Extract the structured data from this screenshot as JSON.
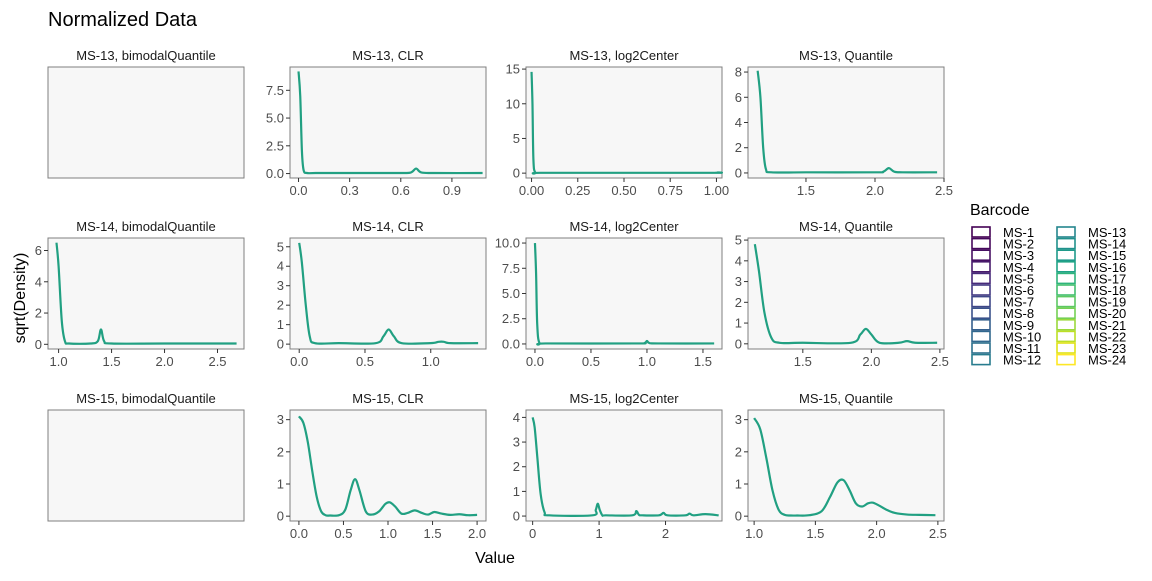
{
  "figure": {
    "title": "Normalized Data",
    "xlabel": "Value",
    "ylabel": "sqrt(Density)",
    "legend_title": "Barcode",
    "legend_placement": "right"
  },
  "legend": {
    "items": [
      {
        "label": "MS-1",
        "color": "#440154"
      },
      {
        "label": "MS-2",
        "color": "#46085C"
      },
      {
        "label": "MS-3",
        "color": "#471063"
      },
      {
        "label": "MS-4",
        "color": "#481A6C"
      },
      {
        "label": "MS-5",
        "color": "#472A7A"
      },
      {
        "label": "MS-6",
        "color": "#443A83"
      },
      {
        "label": "MS-7",
        "color": "#3F4788"
      },
      {
        "label": "MS-8",
        "color": "#3B528B"
      },
      {
        "label": "MS-9",
        "color": "#355F8D"
      },
      {
        "label": "MS-10",
        "color": "#31688E"
      },
      {
        "label": "MS-11",
        "color": "#2D718E"
      },
      {
        "label": "MS-12",
        "color": "#287C8E"
      },
      {
        "label": "MS-13",
        "color": "#24868E"
      },
      {
        "label": "MS-14",
        "color": "#21918C"
      },
      {
        "label": "MS-15",
        "color": "#1F9A8A"
      },
      {
        "label": "MS-16",
        "color": "#20A386"
      },
      {
        "label": "MS-17",
        "color": "#2FB47C"
      },
      {
        "label": "MS-18",
        "color": "#44BF70"
      },
      {
        "label": "MS-19",
        "color": "#5DC863"
      },
      {
        "label": "MS-20",
        "color": "#75D054"
      },
      {
        "label": "MS-21",
        "color": "#9BD93C"
      },
      {
        "label": "MS-22",
        "color": "#BDDF26"
      },
      {
        "label": "MS-23",
        "color": "#DFE318"
      },
      {
        "label": "MS-24",
        "color": "#FDE725"
      }
    ]
  },
  "chart_data": [
    {
      "type": "line",
      "title": "MS-13, bimodalQuantile",
      "empty": true,
      "series": []
    },
    {
      "type": "line",
      "title": "MS-13, CLR",
      "xlim": [
        -0.05,
        1.1
      ],
      "ylim": [
        -0.4,
        9.6
      ],
      "xticks": [
        0.0,
        0.3,
        0.6,
        0.9
      ],
      "xtick_labels": [
        "0.0",
        "0.3",
        "0.6",
        "0.9"
      ],
      "yticks": [
        0.0,
        2.5,
        5.0,
        7.5
      ],
      "ytick_labels": [
        "0.0",
        "2.5",
        "5.0",
        "7.5"
      ],
      "series": [
        {
          "barcode": "MS-13",
          "color": "#24868E",
          "x": [
            0,
            0.01,
            0.02,
            0.03,
            0.05,
            0.1,
            0.3,
            0.6,
            0.66,
            0.69,
            0.72,
            0.8,
            1.08
          ],
          "y": [
            9.2,
            7.0,
            2.0,
            0.3,
            0.05,
            0.05,
            0.05,
            0.05,
            0.1,
            0.45,
            0.1,
            0.05,
            0.05
          ]
        }
      ]
    },
    {
      "type": "line",
      "title": "MS-13, log2Center",
      "xlim": [
        -0.03,
        1.03
      ],
      "ylim": [
        -0.7,
        15.3
      ],
      "xticks": [
        0.0,
        0.25,
        0.5,
        0.75,
        1.0
      ],
      "xtick_labels": [
        "0.00",
        "0.25",
        "0.50",
        "0.75",
        "1.00"
      ],
      "yticks": [
        0,
        5,
        10,
        15
      ],
      "ytick_labels": [
        "0",
        "5",
        "10",
        "15"
      ],
      "series": [
        {
          "barcode": "MS-13",
          "color": "#24868E",
          "x": [
            0,
            0.005,
            0.01,
            0.02,
            0.05,
            0.5,
            0.99,
            1.0
          ],
          "y": [
            14.6,
            10.0,
            2.0,
            0.1,
            0.05,
            0.05,
            0.05,
            0.1
          ]
        }
      ]
    },
    {
      "type": "line",
      "title": "MS-13, Quantile",
      "xlim": [
        1.08,
        2.5
      ],
      "ylim": [
        -0.4,
        8.4
      ],
      "xticks": [
        1.5,
        2.0,
        2.5
      ],
      "xtick_labels": [
        "1.5",
        "2.0",
        "2.5"
      ],
      "yticks": [
        0,
        2,
        4,
        6,
        8
      ],
      "ytick_labels": [
        "0",
        "2",
        "4",
        "6",
        "8"
      ],
      "series": [
        {
          "barcode": "MS-13",
          "color": "#24868E",
          "x": [
            1.15,
            1.17,
            1.19,
            1.21,
            1.25,
            1.5,
            2.0,
            2.06,
            2.1,
            2.14,
            2.2,
            2.45
          ],
          "y": [
            8.1,
            6.0,
            2.0,
            0.3,
            0.05,
            0.05,
            0.05,
            0.1,
            0.38,
            0.1,
            0.05,
            0.05
          ]
        }
      ]
    },
    {
      "type": "line",
      "title": "MS-14, bimodalQuantile",
      "xlim": [
        0.9,
        2.75
      ],
      "ylim": [
        -0.3,
        6.8
      ],
      "xticks": [
        1.0,
        1.5,
        2.0,
        2.5
      ],
      "xtick_labels": [
        "1.0",
        "1.5",
        "2.0",
        "2.5"
      ],
      "yticks": [
        0,
        2,
        4,
        6
      ],
      "ytick_labels": [
        "0",
        "2",
        "4",
        "6"
      ],
      "series": [
        {
          "barcode": "MS-14",
          "color": "#21918C",
          "x": [
            0.98,
            1.0,
            1.03,
            1.06,
            1.1,
            1.3,
            1.37,
            1.4,
            1.43,
            1.5,
            2.0,
            2.68
          ],
          "y": [
            6.5,
            5.0,
            1.5,
            0.2,
            0.05,
            0.05,
            0.2,
            0.95,
            0.2,
            0.05,
            0.05,
            0.05
          ]
        }
      ]
    },
    {
      "type": "line",
      "title": "MS-14, CLR",
      "xlim": [
        -0.07,
        1.42
      ],
      "ylim": [
        -0.25,
        5.45
      ],
      "xticks": [
        0.0,
        0.5,
        1.0
      ],
      "xtick_labels": [
        "0.0",
        "0.5",
        "1.0"
      ],
      "yticks": [
        0,
        1,
        2,
        3,
        4,
        5
      ],
      "ytick_labels": [
        "0",
        "1",
        "2",
        "3",
        "4",
        "5"
      ],
      "series": [
        {
          "barcode": "MS-14",
          "color": "#21918C",
          "x": [
            0,
            0.02,
            0.05,
            0.08,
            0.12,
            0.3,
            0.58,
            0.64,
            0.68,
            0.72,
            0.78,
            1.0,
            1.06,
            1.1,
            1.15,
            1.36
          ],
          "y": [
            5.2,
            4.2,
            2.0,
            0.4,
            0.05,
            0.05,
            0.05,
            0.4,
            0.75,
            0.4,
            0.05,
            0.05,
            0.12,
            0.12,
            0.05,
            0.05
          ]
        }
      ]
    },
    {
      "type": "line",
      "title": "MS-14, log2Center",
      "xlim": [
        -0.08,
        1.67
      ],
      "ylim": [
        -0.5,
        10.5
      ],
      "xticks": [
        0.0,
        0.5,
        1.0,
        1.5
      ],
      "xtick_labels": [
        "0.0",
        "0.5",
        "1.0",
        "1.5"
      ],
      "yticks": [
        0.0,
        2.5,
        5.0,
        7.5,
        10.0
      ],
      "ytick_labels": [
        "0.0",
        "2.5",
        "5.0",
        "7.5",
        "10.0"
      ],
      "series": [
        {
          "barcode": "MS-14",
          "color": "#21918C",
          "x": [
            0,
            0.01,
            0.02,
            0.04,
            0.1,
            0.9,
            0.98,
            1.0,
            1.02,
            1.1,
            1.6
          ],
          "y": [
            10.0,
            7.0,
            2.0,
            0.1,
            0.05,
            0.05,
            0.1,
            0.3,
            0.1,
            0.05,
            0.05
          ]
        }
      ]
    },
    {
      "type": "line",
      "title": "MS-14, Quantile",
      "xlim": [
        1.1,
        2.53
      ],
      "ylim": [
        -0.25,
        5.1
      ],
      "xticks": [
        1.5,
        2.0,
        2.5
      ],
      "xtick_labels": [
        "1.5",
        "2.0",
        "2.5"
      ],
      "yticks": [
        0,
        1,
        2,
        3,
        4,
        5
      ],
      "ytick_labels": [
        "0",
        "1",
        "2",
        "3",
        "4",
        "5"
      ],
      "series": [
        {
          "barcode": "MS-14",
          "color": "#21918C",
          "x": [
            1.15,
            1.18,
            1.22,
            1.27,
            1.33,
            1.5,
            1.85,
            1.92,
            1.96,
            2.0,
            2.06,
            2.2,
            2.26,
            2.32,
            2.48
          ],
          "y": [
            4.8,
            3.5,
            1.5,
            0.3,
            0.05,
            0.05,
            0.05,
            0.45,
            0.72,
            0.45,
            0.05,
            0.05,
            0.13,
            0.05,
            0.05
          ]
        }
      ]
    },
    {
      "type": "line",
      "title": "MS-15, bimodalQuantile",
      "empty": true,
      "series": []
    },
    {
      "type": "line",
      "title": "MS-15, CLR",
      "xlim": [
        -0.1,
        2.1
      ],
      "ylim": [
        -0.15,
        3.3
      ],
      "xticks": [
        0.0,
        0.5,
        1.0,
        1.5,
        2.0
      ],
      "xtick_labels": [
        "0.0",
        "0.5",
        "1.0",
        "1.5",
        "2.0"
      ],
      "yticks": [
        0,
        1,
        2,
        3
      ],
      "ytick_labels": [
        "0",
        "1",
        "2",
        "3"
      ],
      "series": [
        {
          "barcode": "MS-15",
          "color": "#1F9A8A",
          "x": [
            0,
            0.05,
            0.1,
            0.15,
            0.2,
            0.25,
            0.3,
            0.35,
            0.45,
            0.52,
            0.58,
            0.63,
            0.68,
            0.75,
            0.82,
            0.9,
            0.97,
            1.02,
            1.08,
            1.15,
            1.22,
            1.3,
            1.38,
            1.45,
            1.52,
            1.6,
            1.7,
            1.8,
            1.9,
            2.0
          ],
          "y": [
            3.1,
            2.9,
            2.3,
            1.4,
            0.6,
            0.15,
            0.03,
            0.02,
            0.03,
            0.2,
            0.8,
            1.15,
            0.8,
            0.15,
            0.05,
            0.15,
            0.38,
            0.43,
            0.3,
            0.08,
            0.1,
            0.18,
            0.1,
            0.05,
            0.13,
            0.08,
            0.04,
            0.06,
            0.03,
            0.04
          ]
        }
      ]
    },
    {
      "type": "line",
      "title": "MS-15, log2Center",
      "xlim": [
        -0.1,
        2.85
      ],
      "ylim": [
        -0.2,
        4.3
      ],
      "xticks": [
        0,
        1,
        2
      ],
      "xtick_labels": [
        "0",
        "1",
        "2"
      ],
      "yticks": [
        0,
        1,
        2,
        3,
        4
      ],
      "ytick_labels": [
        "0",
        "1",
        "2",
        "3",
        "4"
      ],
      "series": [
        {
          "barcode": "MS-15",
          "color": "#1F9A8A",
          "x": [
            0,
            0.03,
            0.07,
            0.12,
            0.18,
            0.25,
            0.9,
            0.95,
            0.98,
            1.01,
            1.05,
            1.1,
            1.5,
            1.56,
            1.6,
            1.65,
            1.9,
            1.97,
            2.03,
            2.3,
            2.36,
            2.42,
            2.6,
            2.8
          ],
          "y": [
            4.0,
            3.6,
            2.4,
            0.9,
            0.15,
            0.03,
            0.03,
            0.25,
            0.5,
            0.25,
            0.03,
            0.03,
            0.03,
            0.2,
            0.05,
            0.03,
            0.03,
            0.13,
            0.03,
            0.03,
            0.1,
            0.03,
            0.08,
            0.03
          ]
        }
      ]
    },
    {
      "type": "line",
      "title": "MS-15, Quantile",
      "xlim": [
        0.95,
        2.55
      ],
      "ylim": [
        -0.15,
        3.3
      ],
      "xticks": [
        1.0,
        1.5,
        2.0,
        2.5
      ],
      "xtick_labels": [
        "1.0",
        "1.5",
        "2.0",
        "2.5"
      ],
      "yticks": [
        0,
        1,
        2,
        3
      ],
      "ytick_labels": [
        "0",
        "1",
        "2",
        "3"
      ],
      "series": [
        {
          "barcode": "MS-15",
          "color": "#1F9A8A",
          "x": [
            1.0,
            1.05,
            1.1,
            1.15,
            1.2,
            1.25,
            1.3,
            1.35,
            1.45,
            1.55,
            1.62,
            1.68,
            1.73,
            1.78,
            1.83,
            1.88,
            1.93,
            1.97,
            2.02,
            2.08,
            2.15,
            2.25,
            2.35,
            2.48
          ],
          "y": [
            3.05,
            2.7,
            1.8,
            0.8,
            0.2,
            0.04,
            0.02,
            0.02,
            0.03,
            0.15,
            0.6,
            1.05,
            1.12,
            0.8,
            0.4,
            0.3,
            0.4,
            0.42,
            0.33,
            0.2,
            0.1,
            0.05,
            0.04,
            0.03
          ]
        }
      ]
    }
  ]
}
